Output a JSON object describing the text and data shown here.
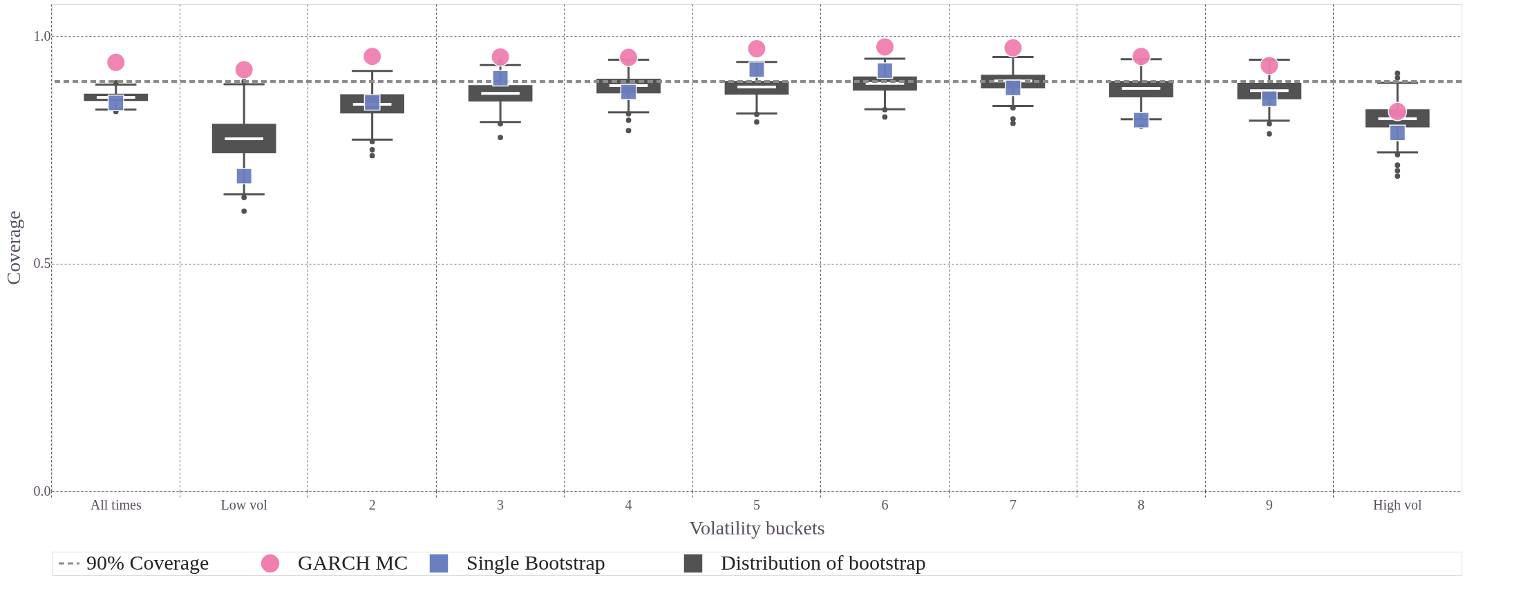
{
  "chart_data": {
    "type": "box",
    "xlabel": "Volatility buckets",
    "ylabel": "Coverage",
    "categories": [
      "All times",
      "Low vol",
      "2",
      "3",
      "4",
      "5",
      "6",
      "7",
      "8",
      "9",
      "High vol"
    ],
    "ylim": [
      0,
      1.07
    ],
    "yticks": [
      {
        "value": 0,
        "label": "0.0"
      },
      {
        "value": 0.5,
        "label": "0.5"
      },
      {
        "value": 1,
        "label": "1.0"
      }
    ],
    "grid": true,
    "legend": "bottom",
    "ref_lines": [
      {
        "axis": "y",
        "value": 0.9,
        "label": "90% Coverage",
        "color": "#8c8c8c",
        "line_style": "dashed"
      }
    ],
    "series": [
      {
        "name": "GARCH MC",
        "type": "scatter",
        "marker": "circle",
        "color": "#f07fb0",
        "x": [
          "All times",
          "Low vol",
          "2",
          "3",
          "4",
          "5",
          "6",
          "7",
          "8",
          "9",
          "High vol"
        ],
        "values": [
          0.942,
          0.926,
          0.955,
          0.954,
          0.953,
          0.972,
          0.976,
          0.974,
          0.955,
          0.935,
          0.834
        ]
      },
      {
        "name": "Single Bootstrap",
        "type": "scatter",
        "marker": "square",
        "color": "#6a7fc0",
        "x": [
          "All times",
          "Low vol",
          "2",
          "3",
          "4",
          "5",
          "6",
          "7",
          "8",
          "9",
          "High vol"
        ],
        "values": [
          0.853,
          0.692,
          0.854,
          0.907,
          0.877,
          0.926,
          0.924,
          0.886,
          0.815,
          0.862,
          0.787
        ]
      },
      {
        "name": "Distribution of bootstrap",
        "type": "box",
        "color": "#525252",
        "boxes": [
          {
            "low": 0.838,
            "q1": 0.857,
            "median": 0.865,
            "q3": 0.873,
            "high": 0.893,
            "outliers": [
              0.897,
              0.834
            ]
          },
          {
            "low": 0.652,
            "q1": 0.742,
            "median": 0.774,
            "q3": 0.807,
            "high": 0.894,
            "outliers": [
              0.9,
              0.645,
              0.615
            ]
          },
          {
            "low": 0.772,
            "q1": 0.83,
            "median": 0.85,
            "q3": 0.872,
            "high": 0.923,
            "outliers": [
              0.768,
              0.75,
              0.737
            ]
          },
          {
            "low": 0.811,
            "q1": 0.856,
            "median": 0.874,
            "q3": 0.892,
            "high": 0.936,
            "outliers": [
              0.945,
              0.807,
              0.777
            ]
          },
          {
            "low": 0.832,
            "q1": 0.874,
            "median": 0.891,
            "q3": 0.906,
            "high": 0.948,
            "outliers": [
              0.829,
              0.815,
              0.792
            ]
          },
          {
            "low": 0.83,
            "q1": 0.871,
            "median": 0.888,
            "q3": 0.901,
            "high": 0.943,
            "outliers": [
              0.828,
              0.811
            ]
          },
          {
            "low": 0.839,
            "q1": 0.88,
            "median": 0.896,
            "q3": 0.911,
            "high": 0.95,
            "outliers": [
              0.838,
              0.822
            ]
          },
          {
            "low": 0.846,
            "q1": 0.885,
            "median": 0.901,
            "q3": 0.915,
            "high": 0.954,
            "outliers": [
              0.842,
              0.818,
              0.808
            ]
          },
          {
            "low": 0.817,
            "q1": 0.865,
            "median": 0.885,
            "q3": 0.901,
            "high": 0.949,
            "outliers": [
              0.801
            ]
          },
          {
            "low": 0.814,
            "q1": 0.861,
            "median": 0.88,
            "q3": 0.897,
            "high": 0.948,
            "outliers": [
              0.807,
              0.785
            ]
          },
          {
            "low": 0.744,
            "q1": 0.799,
            "median": 0.818,
            "q3": 0.839,
            "high": 0.897,
            "outliers": [
              0.918,
              0.908,
              0.739,
              0.716,
              0.704,
              0.692
            ]
          }
        ]
      }
    ]
  }
}
